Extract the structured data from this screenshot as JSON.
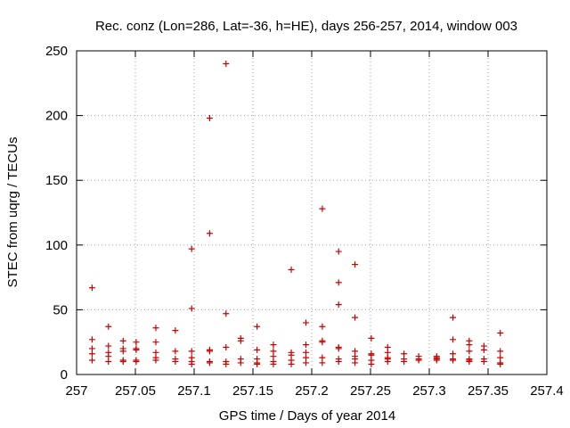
{
  "chart_data": {
    "type": "scatter",
    "title": "Rec. conz (Lon=286, Lat=-36, h=HE), days 256-257, 2014, window 003",
    "xlabel": "GPS time / Days of year 2014",
    "ylabel": "STEC from uqrg / TECUs",
    "xlim": [
      257,
      257.4
    ],
    "ylim": [
      0,
      250
    ],
    "xticks": [
      "257",
      "257.05",
      "257.1",
      "257.15",
      "257.2",
      "257.25",
      "257.3",
      "257.35",
      "257.4"
    ],
    "yticks": [
      "0",
      "50",
      "100",
      "150",
      "200",
      "250"
    ],
    "grid": true,
    "marker": "+",
    "color": "#cc0000",
    "points": [
      [
        257.0132,
        67
      ],
      [
        257.0132,
        27
      ],
      [
        257.0132,
        20
      ],
      [
        257.0132,
        16
      ],
      [
        257.0132,
        11
      ],
      [
        257.0271,
        37
      ],
      [
        257.0271,
        22
      ],
      [
        257.0271,
        17
      ],
      [
        257.0271,
        14
      ],
      [
        257.0271,
        10
      ],
      [
        257.0396,
        26
      ],
      [
        257.0396,
        20
      ],
      [
        257.0396,
        18
      ],
      [
        257.0396,
        11
      ],
      [
        257.0396,
        10
      ],
      [
        257.0507,
        25
      ],
      [
        257.0507,
        20
      ],
      [
        257.0507,
        19
      ],
      [
        257.0507,
        11
      ],
      [
        257.0507,
        10
      ],
      [
        257.0674,
        36
      ],
      [
        257.0674,
        25
      ],
      [
        257.0674,
        17
      ],
      [
        257.0674,
        13
      ],
      [
        257.0674,
        11
      ],
      [
        257.084,
        34
      ],
      [
        257.084,
        18
      ],
      [
        257.084,
        12
      ],
      [
        257.084,
        10
      ],
      [
        257.0979,
        97
      ],
      [
        257.0979,
        51
      ],
      [
        257.0979,
        18
      ],
      [
        257.0979,
        13
      ],
      [
        257.0979,
        10
      ],
      [
        257.0979,
        8
      ],
      [
        257.1132,
        198
      ],
      [
        257.1132,
        109
      ],
      [
        257.1132,
        19
      ],
      [
        257.1132,
        18
      ],
      [
        257.1132,
        10
      ],
      [
        257.1132,
        9
      ],
      [
        257.1271,
        240
      ],
      [
        257.1271,
        47
      ],
      [
        257.1271,
        21
      ],
      [
        257.1271,
        10
      ],
      [
        257.1271,
        8
      ],
      [
        257.1396,
        28
      ],
      [
        257.1396,
        26
      ],
      [
        257.1396,
        12
      ],
      [
        257.1396,
        9
      ],
      [
        257.1535,
        37
      ],
      [
        257.1535,
        19
      ],
      [
        257.1535,
        12
      ],
      [
        257.1535,
        9
      ],
      [
        257.1535,
        8
      ],
      [
        257.1674,
        23
      ],
      [
        257.1674,
        18
      ],
      [
        257.1674,
        14
      ],
      [
        257.1674,
        10
      ],
      [
        257.1674,
        8
      ],
      [
        257.1826,
        81
      ],
      [
        257.1826,
        17
      ],
      [
        257.1826,
        15
      ],
      [
        257.1826,
        11
      ],
      [
        257.1826,
        8
      ],
      [
        257.1951,
        40
      ],
      [
        257.1951,
        23
      ],
      [
        257.1951,
        17
      ],
      [
        257.1951,
        13
      ],
      [
        257.1951,
        9
      ],
      [
        257.209,
        128
      ],
      [
        257.209,
        37
      ],
      [
        257.209,
        26
      ],
      [
        257.209,
        25
      ],
      [
        257.209,
        13
      ],
      [
        257.209,
        9
      ],
      [
        257.2229,
        95
      ],
      [
        257.2229,
        71
      ],
      [
        257.2229,
        54
      ],
      [
        257.2229,
        21
      ],
      [
        257.2229,
        20
      ],
      [
        257.2229,
        12
      ],
      [
        257.2229,
        10
      ],
      [
        257.2368,
        85
      ],
      [
        257.2368,
        44
      ],
      [
        257.2368,
        18
      ],
      [
        257.2368,
        14
      ],
      [
        257.2368,
        12
      ],
      [
        257.2368,
        9
      ],
      [
        257.2507,
        28
      ],
      [
        257.2507,
        16
      ],
      [
        257.2507,
        15
      ],
      [
        257.2507,
        11
      ],
      [
        257.2507,
        8
      ],
      [
        257.2646,
        21
      ],
      [
        257.2646,
        17
      ],
      [
        257.2646,
        13
      ],
      [
        257.2646,
        12
      ],
      [
        257.2646,
        10
      ],
      [
        257.2785,
        16
      ],
      [
        257.2785,
        12
      ],
      [
        257.2785,
        10
      ],
      [
        257.291,
        14
      ],
      [
        257.291,
        12
      ],
      [
        257.291,
        11
      ],
      [
        257.3063,
        14
      ],
      [
        257.3063,
        13
      ],
      [
        257.3063,
        12
      ],
      [
        257.3063,
        11
      ],
      [
        257.3201,
        44
      ],
      [
        257.3201,
        27
      ],
      [
        257.3201,
        16
      ],
      [
        257.3201,
        12
      ],
      [
        257.3201,
        11
      ],
      [
        257.334,
        26
      ],
      [
        257.334,
        23
      ],
      [
        257.334,
        18
      ],
      [
        257.334,
        12
      ],
      [
        257.334,
        11
      ],
      [
        257.334,
        10
      ],
      [
        257.3465,
        22
      ],
      [
        257.3465,
        19
      ],
      [
        257.3465,
        12
      ],
      [
        257.3465,
        10
      ],
      [
        257.3604,
        32
      ],
      [
        257.3604,
        18
      ],
      [
        257.3604,
        13
      ],
      [
        257.3604,
        9
      ],
      [
        257.3604,
        8
      ]
    ]
  }
}
